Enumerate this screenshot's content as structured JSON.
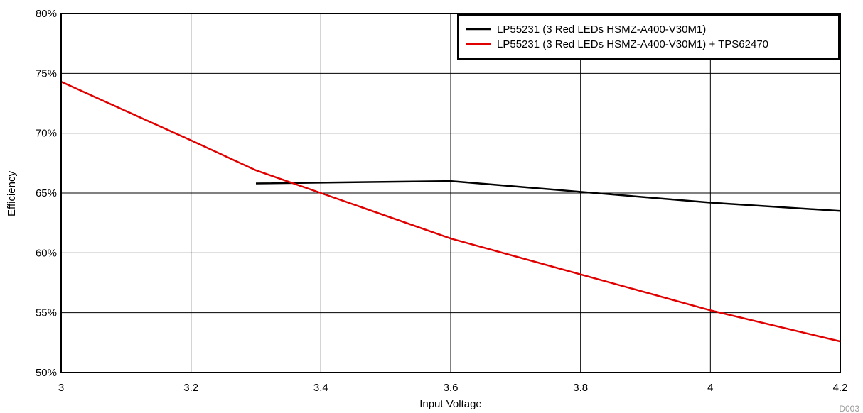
{
  "chart_data": {
    "type": "line",
    "title": "",
    "xlabel": "Input Voltage",
    "ylabel": "Efficiency",
    "xlim": [
      3,
      4.2
    ],
    "ylim": [
      50,
      80
    ],
    "x_ticks": [
      3,
      3.2,
      3.4,
      3.6,
      3.8,
      4,
      4.2
    ],
    "x_tick_labels": [
      "3",
      "3.2",
      "3.4",
      "3.6",
      "3.8",
      "4",
      "4.2"
    ],
    "y_ticks": [
      50,
      55,
      60,
      65,
      70,
      75,
      80
    ],
    "y_tick_labels": [
      "50%",
      "55%",
      "60%",
      "65%",
      "70%",
      "75%",
      "80%"
    ],
    "grid": true,
    "legend_position": "top-right",
    "series": [
      {
        "name": "LP55231 (3 Red LEDs HSMZ-A400-V30M1)",
        "color": "#000000",
        "x": [
          3.3,
          3.6,
          3.8,
          4.0,
          4.2
        ],
        "y": [
          65.8,
          66.0,
          65.1,
          64.2,
          63.5
        ]
      },
      {
        "name": "LP55231 (3 Red LEDs HSMZ-A400-V30M1) + TPS62470",
        "color": "#e00000",
        "x": [
          3.0,
          3.2,
          3.3,
          3.4,
          3.6,
          3.8,
          4.0,
          4.2
        ],
        "y": [
          74.3,
          69.4,
          66.9,
          65.0,
          61.2,
          58.2,
          55.2,
          52.6
        ]
      }
    ],
    "figure_id": "D003"
  }
}
